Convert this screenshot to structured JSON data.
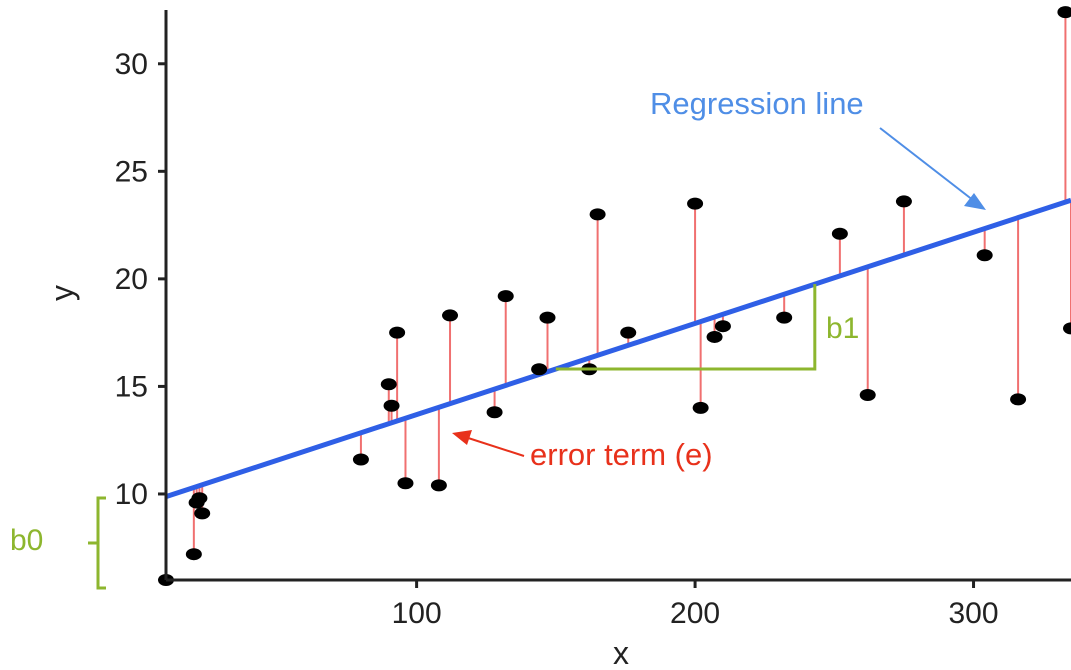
{
  "chart_data": {
    "type": "scatter",
    "title": "",
    "xlabel": "x",
    "ylabel": "y",
    "xlim": [
      10,
      335
    ],
    "ylim": [
      6,
      32.5
    ],
    "x_ticks": [
      100,
      200,
      300
    ],
    "y_ticks": [
      10,
      15,
      20,
      25,
      30
    ],
    "grid": false,
    "regression": {
      "intercept": 9.45,
      "slope": 0.0424
    },
    "points": [
      {
        "x": 10,
        "y": 6
      },
      {
        "x": 20,
        "y": 7.2
      },
      {
        "x": 21,
        "y": 9.6
      },
      {
        "x": 22,
        "y": 9.8
      },
      {
        "x": 23,
        "y": 9.1
      },
      {
        "x": 80,
        "y": 11.6
      },
      {
        "x": 90,
        "y": 15.1
      },
      {
        "x": 91,
        "y": 14.1
      },
      {
        "x": 93,
        "y": 17.5
      },
      {
        "x": 96,
        "y": 10.5
      },
      {
        "x": 108,
        "y": 10.4
      },
      {
        "x": 112,
        "y": 18.3
      },
      {
        "x": 128,
        "y": 13.8
      },
      {
        "x": 132,
        "y": 19.2
      },
      {
        "x": 144,
        "y": 15.8
      },
      {
        "x": 147,
        "y": 18.2
      },
      {
        "x": 162,
        "y": 15.8
      },
      {
        "x": 165,
        "y": 23.0
      },
      {
        "x": 176,
        "y": 17.5
      },
      {
        "x": 200,
        "y": 23.5
      },
      {
        "x": 202,
        "y": 14.0
      },
      {
        "x": 207,
        "y": 17.3
      },
      {
        "x": 210,
        "y": 17.8
      },
      {
        "x": 232,
        "y": 18.2
      },
      {
        "x": 252,
        "y": 22.1
      },
      {
        "x": 262,
        "y": 14.6
      },
      {
        "x": 275,
        "y": 23.6
      },
      {
        "x": 304,
        "y": 21.1
      },
      {
        "x": 316,
        "y": 14.4
      },
      {
        "x": 333,
        "y": 32.4
      },
      {
        "x": 335,
        "y": 17.7
      }
    ],
    "annotations": {
      "regression_label": "Regression line",
      "error_label": "error term (e)",
      "slope_label": "b1",
      "intercept_label": "b0"
    },
    "colors": {
      "regression": "#2f5fe6",
      "residual": "#f07070",
      "point": "#000000",
      "annotation_blue": "#4f8ee6",
      "annotation_red": "#e8311b",
      "annotation_green": "#8db62e"
    }
  }
}
